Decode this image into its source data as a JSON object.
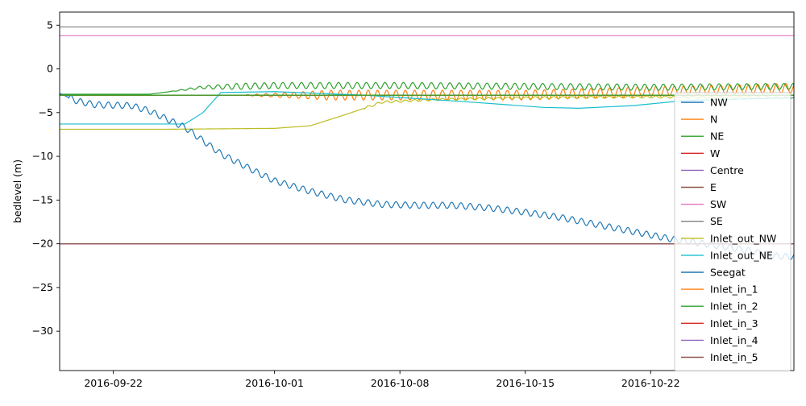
{
  "chart_data": {
    "type": "line",
    "title": "",
    "xlabel": "",
    "ylabel": "bedlevel (m)",
    "x_range": [
      "2016-09-19",
      "2016-10-30"
    ],
    "ylim": [
      -34.5,
      6.5
    ],
    "x_ticks": [
      "2016-09-22",
      "2016-10-01",
      "2016-10-08",
      "2016-10-15",
      "2016-10-22"
    ],
    "y_ticks": [
      5,
      0,
      -5,
      -10,
      -15,
      -20,
      -25,
      -30
    ],
    "y_tick_labels": [
      "5",
      "0",
      "−5",
      "−10",
      "−15",
      "−20",
      "−25",
      "−30"
    ],
    "grid": false,
    "legend_position": "right",
    "series": [
      {
        "name": "NW",
        "color": "#1f77b4",
        "x": [
          "2016-09-19",
          "2016-10-30"
        ],
        "y": [
          -3.0,
          -3.0
        ]
      },
      {
        "name": "N",
        "color": "#ff7f0e",
        "x": [
          "2016-09-19",
          "2016-09-25",
          "2016-10-01",
          "2016-10-08",
          "2016-10-15",
          "2016-10-22",
          "2016-10-30"
        ],
        "y": [
          -3.0,
          -3.0,
          -3.0,
          -3.0,
          -3.0,
          -2.6,
          -2.2
        ]
      },
      {
        "name": "NE",
        "color": "#2ca02c",
        "x": [
          "2016-09-19",
          "2016-09-24",
          "2016-09-27",
          "2016-10-01",
          "2016-10-08",
          "2016-10-15",
          "2016-10-22",
          "2016-10-30"
        ],
        "y": [
          -2.9,
          -2.9,
          -2.1,
          -1.9,
          -1.9,
          -2.0,
          -2.1,
          -2.0
        ]
      },
      {
        "name": "W",
        "color": "#d62728",
        "x": [
          "2016-09-19",
          "2016-10-30"
        ],
        "y": [
          -3.0,
          -3.0
        ]
      },
      {
        "name": "Centre",
        "color": "#9467bd",
        "x": [
          "2016-09-19",
          "2016-10-30"
        ],
        "y": [
          -20.0,
          -20.0
        ]
      },
      {
        "name": "E",
        "color": "#8c564b",
        "x": [
          "2016-09-19",
          "2016-10-30"
        ],
        "y": [
          -3.0,
          -3.0
        ]
      },
      {
        "name": "SW",
        "color": "#e377c2",
        "x": [
          "2016-09-19",
          "2016-10-30"
        ],
        "y": [
          3.8,
          3.8
        ]
      },
      {
        "name": "SE",
        "color": "#7f7f7f",
        "x": [
          "2016-09-19",
          "2016-10-30"
        ],
        "y": [
          4.8,
          4.8
        ]
      },
      {
        "name": "Inlet_out_NW",
        "color": "#bcbd22",
        "x": [
          "2016-09-19",
          "2016-09-25",
          "2016-10-01",
          "2016-10-03",
          "2016-10-05",
          "2016-10-07",
          "2016-10-10",
          "2016-10-15",
          "2016-10-22",
          "2016-10-30"
        ],
        "y": [
          -6.9,
          -6.9,
          -6.8,
          -6.5,
          -5.2,
          -3.8,
          -3.5,
          -3.3,
          -3.2,
          -3.3
        ]
      },
      {
        "name": "Inlet_out_NE",
        "color": "#17becf",
        "x": [
          "2016-09-19",
          "2016-09-26",
          "2016-09-27",
          "2016-09-28",
          "2016-10-01",
          "2016-10-06",
          "2016-10-12",
          "2016-10-16",
          "2016-10-18",
          "2016-10-21",
          "2016-10-24",
          "2016-10-30"
        ],
        "y": [
          -6.3,
          -6.3,
          -5.0,
          -2.7,
          -2.6,
          -3.0,
          -3.8,
          -4.4,
          -4.5,
          -4.2,
          -3.6,
          -3.3
        ]
      },
      {
        "name": "Seegat",
        "color": "#1f77b4",
        "x": [
          "2016-09-19",
          "2016-09-20",
          "2016-09-21",
          "2016-09-23",
          "2016-09-24",
          "2016-09-26",
          "2016-09-28",
          "2016-09-30",
          "2016-10-01",
          "2016-10-03",
          "2016-10-05",
          "2016-10-07",
          "2016-10-09",
          "2016-10-11",
          "2016-10-13",
          "2016-10-15",
          "2016-10-17",
          "2016-10-19",
          "2016-10-21",
          "2016-10-23",
          "2016-10-25",
          "2016-10-27",
          "2016-10-29",
          "2016-10-30"
        ],
        "y": [
          -2.8,
          -3.7,
          -4.1,
          -4.2,
          -4.8,
          -6.7,
          -9.7,
          -11.8,
          -12.8,
          -14.0,
          -15.0,
          -15.5,
          -15.6,
          -15.6,
          -15.9,
          -16.4,
          -17.0,
          -17.8,
          -18.6,
          -19.4,
          -20.0,
          -20.6,
          -21.4,
          -21.5
        ]
      },
      {
        "name": "Inlet_in_1",
        "color": "#ff7f0e",
        "x": [
          "2016-09-19",
          "2016-10-30"
        ],
        "y": [
          -3.0,
          -3.0
        ]
      },
      {
        "name": "Inlet_in_2",
        "color": "#2ca02c",
        "x": [
          "2016-09-19",
          "2016-10-30"
        ],
        "y": [
          -3.0,
          -3.0
        ]
      },
      {
        "name": "Inlet_in_3",
        "color": "#d62728",
        "x": [
          "2016-09-19",
          "2016-10-30"
        ],
        "y": [
          -20.0,
          -20.0
        ]
      },
      {
        "name": "Inlet_in_4",
        "color": "#9467bd",
        "x": [
          "2016-09-19",
          "2016-10-30"
        ],
        "y": [
          -20.0,
          -20.0
        ]
      },
      {
        "name": "Inlet_in_5",
        "color": "#8c564b",
        "x": [
          "2016-09-19",
          "2016-10-30"
        ],
        "y": [
          -20.0,
          -20.0
        ]
      }
    ]
  }
}
